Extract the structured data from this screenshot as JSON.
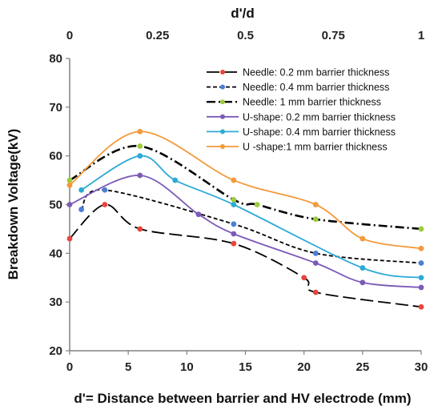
{
  "chart_data": {
    "type": "line",
    "xlabel": "d'= Distance between barrier and HV electrode (mm)",
    "ylabel": "Breakdown Voltage(kV)",
    "x2label": "d'/d",
    "xlim": [
      0,
      30
    ],
    "ylim": [
      20,
      80
    ],
    "x2lim": [
      0,
      1
    ],
    "xticks": [
      0,
      5,
      10,
      15,
      20,
      25,
      30
    ],
    "yticks": [
      20,
      30,
      40,
      50,
      60,
      70,
      80
    ],
    "x2ticks": [
      "0",
      "0.25",
      "0.5",
      "0.75",
      "1"
    ],
    "x2tick_values": [
      0,
      0.25,
      0.5,
      0.75,
      1
    ],
    "grid": false,
    "legend_position": "top-right",
    "series": [
      {
        "name": "Needle: 0.2 mm barrier thickness",
        "color": "#000000",
        "marker_color": "#e8453c",
        "line_style": "long-dash",
        "x": [
          0,
          3,
          6,
          14,
          20,
          21,
          30
        ],
        "y": [
          43,
          50,
          45,
          42,
          35,
          32,
          29
        ]
      },
      {
        "name": "Needle: 0.4 mm barrier thickness",
        "color": "#000000",
        "marker_color": "#4a7fd4",
        "line_style": "short-dash",
        "x": [
          1,
          3,
          14,
          21,
          30
        ],
        "y": [
          49,
          53,
          46,
          40,
          38
        ]
      },
      {
        "name": "Needle: 1 mm barrier thickness",
        "color": "#000000",
        "marker_color": "#9ccc3c",
        "line_style": "dash-dot",
        "x": [
          0,
          6,
          14,
          16,
          21,
          30
        ],
        "y": [
          55,
          62,
          51,
          50,
          47,
          45
        ]
      },
      {
        "name": "U-shape: 0.2 mm barrier thickness",
        "color": "#7c5bb8",
        "marker_color": "#7c5bb8",
        "line_style": "solid",
        "x": [
          0,
          6,
          11,
          14,
          21,
          25,
          30
        ],
        "y": [
          50,
          56,
          48,
          44,
          38,
          34,
          33
        ]
      },
      {
        "name": "U-shape: 0.4 mm barrier thickness",
        "color": "#2eaad6",
        "marker_color": "#2eaad6",
        "line_style": "solid",
        "x": [
          1,
          6,
          9,
          14,
          25,
          30
        ],
        "y": [
          53,
          60,
          55,
          50,
          37,
          35
        ]
      },
      {
        "name": "U -shape:1 mm barrier thickness",
        "color": "#f39a3a",
        "marker_color": "#f39a3a",
        "line_style": "solid",
        "x": [
          0,
          6,
          14,
          21,
          25,
          30
        ],
        "y": [
          54,
          65,
          55,
          50,
          43,
          41
        ]
      }
    ]
  }
}
